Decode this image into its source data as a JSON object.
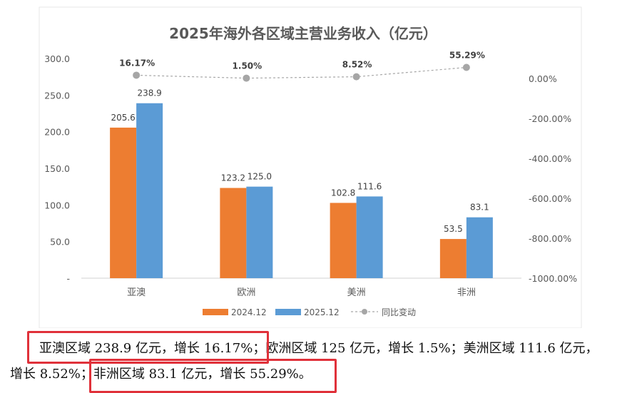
{
  "chart_data": {
    "type": "bar",
    "title": "2025年海外各区域主营业务收入（亿元）",
    "categories": [
      "亚澳",
      "欧洲",
      "美洲",
      "非洲"
    ],
    "series": [
      {
        "name": "2024.12",
        "values": [
          205.6,
          123.2,
          102.8,
          53.5
        ],
        "color": "#ed7d31"
      },
      {
        "name": "2025.12",
        "values": [
          238.9,
          125.0,
          111.6,
          83.1
        ],
        "color": "#5b9bd5"
      }
    ],
    "value_labels": {
      "2024.12": [
        "205.6",
        "123.2",
        "102.8",
        "53.5"
      ],
      "2025.12": [
        "238.9",
        "125.0",
        "111.6",
        "83.1"
      ]
    },
    "line_series": {
      "name": "同比变动",
      "values": [
        16.17,
        1.5,
        8.52,
        55.29
      ],
      "labels": [
        "16.17%",
        "1.50%",
        "8.52%",
        "55.29%"
      ],
      "color": "#a6a6a6",
      "style": "dashed"
    },
    "ylim": [
      0,
      300
    ],
    "y_ticks": [
      "300.0",
      "250.0",
      "200.0",
      "150.0",
      "100.0",
      "50.0",
      "-"
    ],
    "y_tick_values": [
      300,
      250,
      200,
      150,
      100,
      50,
      0
    ],
    "y2lim": [
      -1000,
      100
    ],
    "y2_ticks": [
      "0.00%",
      "-200.00%",
      "-400.00%",
      "-600.00%",
      "-800.00%",
      "-1000.00%"
    ],
    "y2_tick_values": [
      0,
      -200,
      -400,
      -600,
      -800,
      -1000
    ],
    "legend_position": "bottom",
    "grid": false
  },
  "caption": {
    "line1": "亚澳区域 238.9 亿元，增长 16.17%；欧洲区域 125 亿元，增长 1.5%；美洲区域 111.6 亿元，",
    "line2": "增长 8.52%；非洲区域 83.1 亿元，增长 55.29%。"
  },
  "colors": {
    "highlight": "#e0313a"
  }
}
